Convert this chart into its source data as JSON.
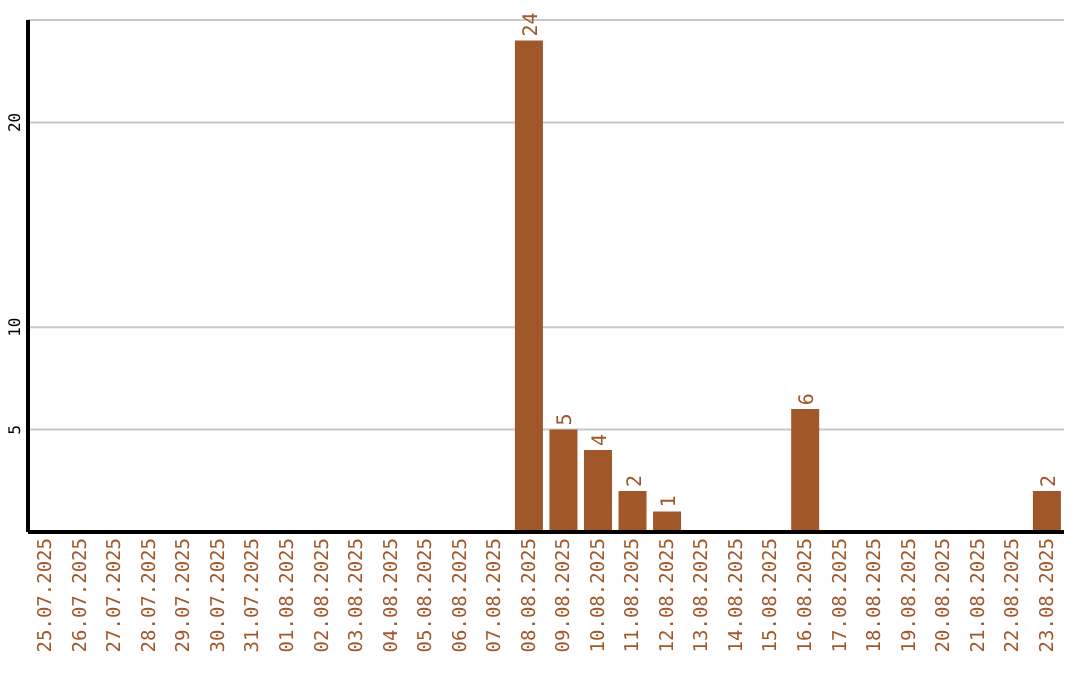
{
  "chart_data": {
    "type": "bar",
    "categories": [
      "25.07.2025",
      "26.07.2025",
      "27.07.2025",
      "28.07.2025",
      "29.07.2025",
      "30.07.2025",
      "31.07.2025",
      "01.08.2025",
      "02.08.2025",
      "03.08.2025",
      "04.08.2025",
      "05.08.2025",
      "06.08.2025",
      "07.08.2025",
      "08.08.2025",
      "09.08.2025",
      "10.08.2025",
      "11.08.2025",
      "12.08.2025",
      "13.08.2025",
      "14.08.2025",
      "15.08.2025",
      "16.08.2025",
      "17.08.2025",
      "18.08.2025",
      "19.08.2025",
      "20.08.2025",
      "21.08.2025",
      "22.08.2025",
      "23.08.2025"
    ],
    "values": [
      0,
      0,
      0,
      0,
      0,
      0,
      0,
      0,
      0,
      0,
      0,
      0,
      0,
      0,
      24,
      5,
      4,
      2,
      1,
      0,
      0,
      0,
      6,
      0,
      0,
      0,
      0,
      0,
      0,
      2
    ],
    "value_labels": [
      null,
      null,
      null,
      null,
      null,
      null,
      null,
      null,
      null,
      null,
      null,
      null,
      null,
      null,
      "24",
      "5",
      "4",
      "2",
      "1",
      null,
      null,
      null,
      "6",
      null,
      null,
      null,
      null,
      null,
      null,
      "2"
    ],
    "color": "#a0572a",
    "ylim": [
      0,
      25
    ],
    "yticks": [
      5,
      10,
      20
    ],
    "grid": "y"
  }
}
